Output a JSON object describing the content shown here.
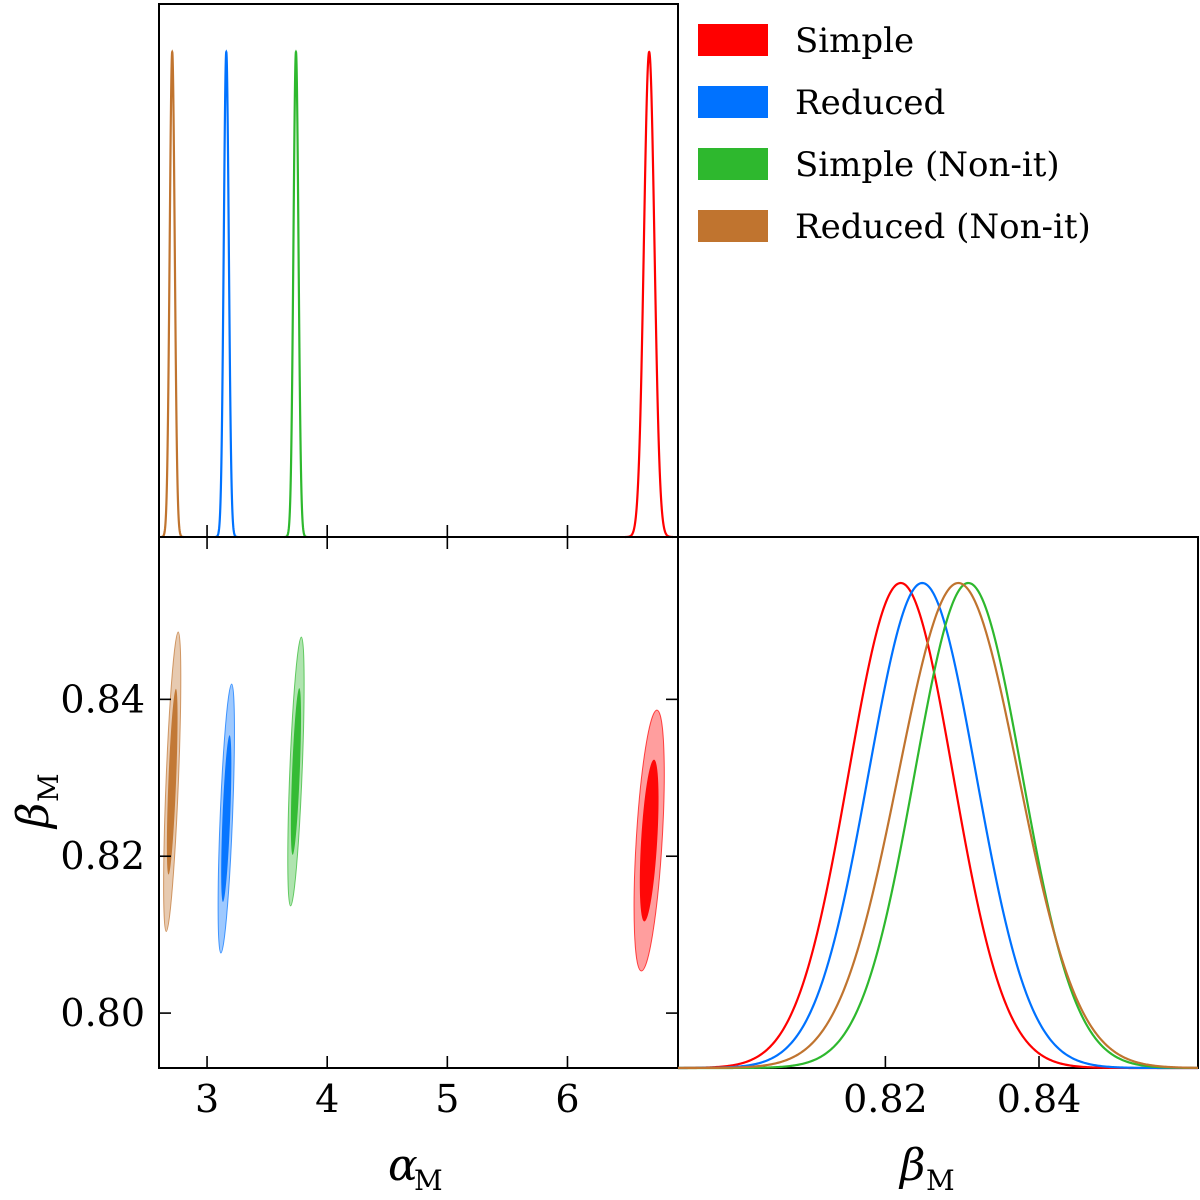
{
  "chart_data": {
    "type": "triangle",
    "legend": {
      "position": "top-right",
      "entries": [
        {
          "label": "Simple",
          "color": "#ff0000"
        },
        {
          "label": "Reduced",
          "color": "#0072ff"
        },
        {
          "label": "Simple (Non-it)",
          "color": "#2eb82e"
        },
        {
          "label": "Reduced (Non-it)",
          "color": "#c0742f"
        }
      ]
    },
    "parameters": [
      {
        "symbol": "α",
        "subscript": "M",
        "range": [
          2.6,
          6.92
        ],
        "ticks": [
          "3",
          "4",
          "5",
          "6"
        ],
        "tick_values": [
          3,
          4,
          5,
          6
        ]
      },
      {
        "symbol": "β",
        "subscript": "M",
        "range": [
          0.793,
          0.8607
        ],
        "ticks": [
          "0.80",
          "0.82",
          "0.84"
        ],
        "tick_values": [
          0.8,
          0.82,
          0.84
        ]
      }
    ],
    "marginal_beta_ticks": [
      "0.82",
      "0.84"
    ],
    "marginal_beta_tick_values": [
      0.82,
      0.84
    ],
    "series": [
      {
        "name": "Simple",
        "color": "#ff0000",
        "alpha_mean": 6.68,
        "alpha_sigma": 0.044,
        "beta_mean": 0.822,
        "beta_sigma": 0.0068,
        "contour_tilt": -0.06
      },
      {
        "name": "Reduced",
        "color": "#0072ff",
        "alpha_mean": 3.16,
        "alpha_sigma": 0.021,
        "beta_mean": 0.8248,
        "beta_sigma": 0.007,
        "contour_tilt": -0.04
      },
      {
        "name": "Simple (Non-it)",
        "color": "#2eb82e",
        "alpha_mean": 3.74,
        "alpha_sigma": 0.021,
        "beta_mean": 0.8308,
        "beta_sigma": 0.007,
        "contour_tilt": -0.04
      },
      {
        "name": "Reduced (Non-it)",
        "color": "#c0742f",
        "alpha_mean": 2.71,
        "alpha_sigma": 0.021,
        "beta_mean": 0.8295,
        "beta_sigma": 0.0078,
        "contour_tilt": -0.04
      }
    ]
  }
}
